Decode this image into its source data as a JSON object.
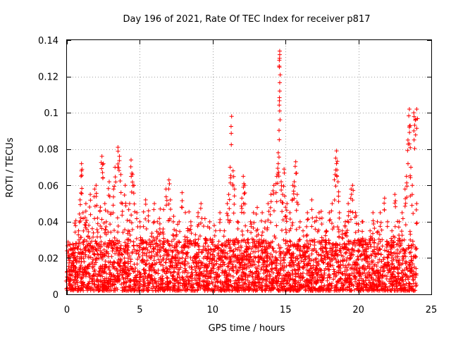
{
  "chart_data": {
    "type": "scatter",
    "title": "Day 196 of 2021, Rate Of TEC Index for receiver p817",
    "xlabel": "GPS time / hours",
    "ylabel": "ROTI / TECUs",
    "xlim": [
      0,
      25
    ],
    "ylim": [
      0,
      0.14
    ],
    "xticks": [
      0,
      5,
      10,
      15,
      20,
      25
    ],
    "xtick_labels": [
      "0",
      "5",
      "10",
      "15",
      "20",
      "25"
    ],
    "yticks": [
      0,
      0.02,
      0.04,
      0.06,
      0.08,
      0.1,
      0.12,
      0.14
    ],
    "ytick_labels": [
      "0",
      "0.02",
      "0.04",
      "0.06",
      "0.08",
      "0.1",
      "0.12",
      "0.14"
    ],
    "grid": true,
    "marker": "+",
    "series": [
      {
        "name": "ROTI",
        "color": "#ff0000",
        "points": [
          [
            0.0,
            0.012
          ],
          [
            0.1,
            0.02
          ],
          [
            0.2,
            0.008
          ],
          [
            0.3,
            0.016
          ],
          [
            0.5,
            0.025
          ],
          [
            0.6,
            0.011
          ],
          [
            0.8,
            0.035
          ],
          [
            0.9,
            0.052
          ],
          [
            1.0,
            0.068
          ],
          [
            1.0,
            0.072
          ],
          [
            1.1,
            0.045
          ],
          [
            1.2,
            0.03
          ],
          [
            1.3,
            0.05
          ],
          [
            1.5,
            0.038
          ],
          [
            1.6,
            0.055
          ],
          [
            1.8,
            0.025
          ],
          [
            1.9,
            0.058
          ],
          [
            2.0,
            0.06
          ],
          [
            2.1,
            0.042
          ],
          [
            2.3,
            0.048
          ],
          [
            2.4,
            0.076
          ],
          [
            2.5,
            0.072
          ],
          [
            2.6,
            0.05
          ],
          [
            2.7,
            0.04
          ],
          [
            2.9,
            0.062
          ],
          [
            3.0,
            0.044
          ],
          [
            3.2,
            0.058
          ],
          [
            3.3,
            0.07
          ],
          [
            3.5,
            0.081
          ],
          [
            3.6,
            0.076
          ],
          [
            3.7,
            0.066
          ],
          [
            3.8,
            0.05
          ],
          [
            4.0,
            0.06
          ],
          [
            4.2,
            0.035
          ],
          [
            4.3,
            0.05
          ],
          [
            4.4,
            0.074
          ],
          [
            4.5,
            0.066
          ],
          [
            4.6,
            0.06
          ],
          [
            4.8,
            0.045
          ],
          [
            5.0,
            0.04
          ],
          [
            5.2,
            0.03
          ],
          [
            5.4,
            0.052
          ],
          [
            5.6,
            0.046
          ],
          [
            5.8,
            0.032
          ],
          [
            6.0,
            0.05
          ],
          [
            6.2,
            0.04
          ],
          [
            6.4,
            0.047
          ],
          [
            6.6,
            0.036
          ],
          [
            6.8,
            0.058
          ],
          [
            7.0,
            0.063
          ],
          [
            7.1,
            0.052
          ],
          [
            7.3,
            0.04
          ],
          [
            7.5,
            0.035
          ],
          [
            7.7,
            0.04
          ],
          [
            7.9,
            0.056
          ],
          [
            8.1,
            0.03
          ],
          [
            8.3,
            0.035
          ],
          [
            8.5,
            0.04
          ],
          [
            8.8,
            0.03
          ],
          [
            9.0,
            0.045
          ],
          [
            9.2,
            0.05
          ],
          [
            9.5,
            0.028
          ],
          [
            9.8,
            0.04
          ],
          [
            10.0,
            0.03
          ],
          [
            10.2,
            0.035
          ],
          [
            10.5,
            0.045
          ],
          [
            10.8,
            0.035
          ],
          [
            11.0,
            0.05
          ],
          [
            11.1,
            0.055
          ],
          [
            11.2,
            0.07
          ],
          [
            11.3,
            0.098
          ],
          [
            11.4,
            0.068
          ],
          [
            11.5,
            0.058
          ],
          [
            11.7,
            0.04
          ],
          [
            12.0,
            0.053
          ],
          [
            12.1,
            0.065
          ],
          [
            12.2,
            0.06
          ],
          [
            12.4,
            0.035
          ],
          [
            12.6,
            0.04
          ],
          [
            12.8,
            0.045
          ],
          [
            13.0,
            0.035
          ],
          [
            13.2,
            0.03
          ],
          [
            13.4,
            0.045
          ],
          [
            13.6,
            0.04
          ],
          [
            13.8,
            0.05
          ],
          [
            14.0,
            0.055
          ],
          [
            14.2,
            0.06
          ],
          [
            14.4,
            0.065
          ],
          [
            14.5,
            0.072
          ],
          [
            14.5,
            0.078
          ],
          [
            14.6,
            0.101
          ],
          [
            14.6,
            0.112
          ],
          [
            14.6,
            0.132
          ],
          [
            14.6,
            0.134
          ],
          [
            14.7,
            0.062
          ],
          [
            14.8,
            0.055
          ],
          [
            14.9,
            0.069
          ],
          [
            15.0,
            0.048
          ],
          [
            15.1,
            0.05
          ],
          [
            15.3,
            0.045
          ],
          [
            15.5,
            0.06
          ],
          [
            15.6,
            0.062
          ],
          [
            15.7,
            0.073
          ],
          [
            15.8,
            0.055
          ],
          [
            16.0,
            0.04
          ],
          [
            16.2,
            0.035
          ],
          [
            16.5,
            0.045
          ],
          [
            16.8,
            0.052
          ],
          [
            17.0,
            0.04
          ],
          [
            17.3,
            0.045
          ],
          [
            17.5,
            0.042
          ],
          [
            17.8,
            0.035
          ],
          [
            18.0,
            0.045
          ],
          [
            18.2,
            0.05
          ],
          [
            18.4,
            0.066
          ],
          [
            18.5,
            0.072
          ],
          [
            18.5,
            0.079
          ],
          [
            18.6,
            0.062
          ],
          [
            18.7,
            0.045
          ],
          [
            18.9,
            0.035
          ],
          [
            19.1,
            0.04
          ],
          [
            19.3,
            0.05
          ],
          [
            19.5,
            0.058
          ],
          [
            19.6,
            0.06
          ],
          [
            19.8,
            0.045
          ],
          [
            20.0,
            0.035
          ],
          [
            20.3,
            0.04
          ],
          [
            20.5,
            0.03
          ],
          [
            20.8,
            0.035
          ],
          [
            21.0,
            0.045
          ],
          [
            21.3,
            0.04
          ],
          [
            21.5,
            0.045
          ],
          [
            21.8,
            0.053
          ],
          [
            22.0,
            0.04
          ],
          [
            22.3,
            0.035
          ],
          [
            22.5,
            0.055
          ],
          [
            22.8,
            0.04
          ],
          [
            23.0,
            0.045
          ],
          [
            23.2,
            0.058
          ],
          [
            23.3,
            0.065
          ],
          [
            23.4,
            0.085
          ],
          [
            23.5,
            0.092
          ],
          [
            23.5,
            0.102
          ],
          [
            23.6,
            0.07
          ],
          [
            23.7,
            0.06
          ],
          [
            23.8,
            0.1
          ],
          [
            23.9,
            0.096
          ],
          [
            24.0,
            0.102
          ],
          [
            24.0,
            0.05
          ]
        ]
      }
    ],
    "dense_band": {
      "description": "continuous background of points",
      "typical_range": [
        0.002,
        0.03
      ],
      "x_range": [
        0.0,
        24.0
      ]
    }
  }
}
